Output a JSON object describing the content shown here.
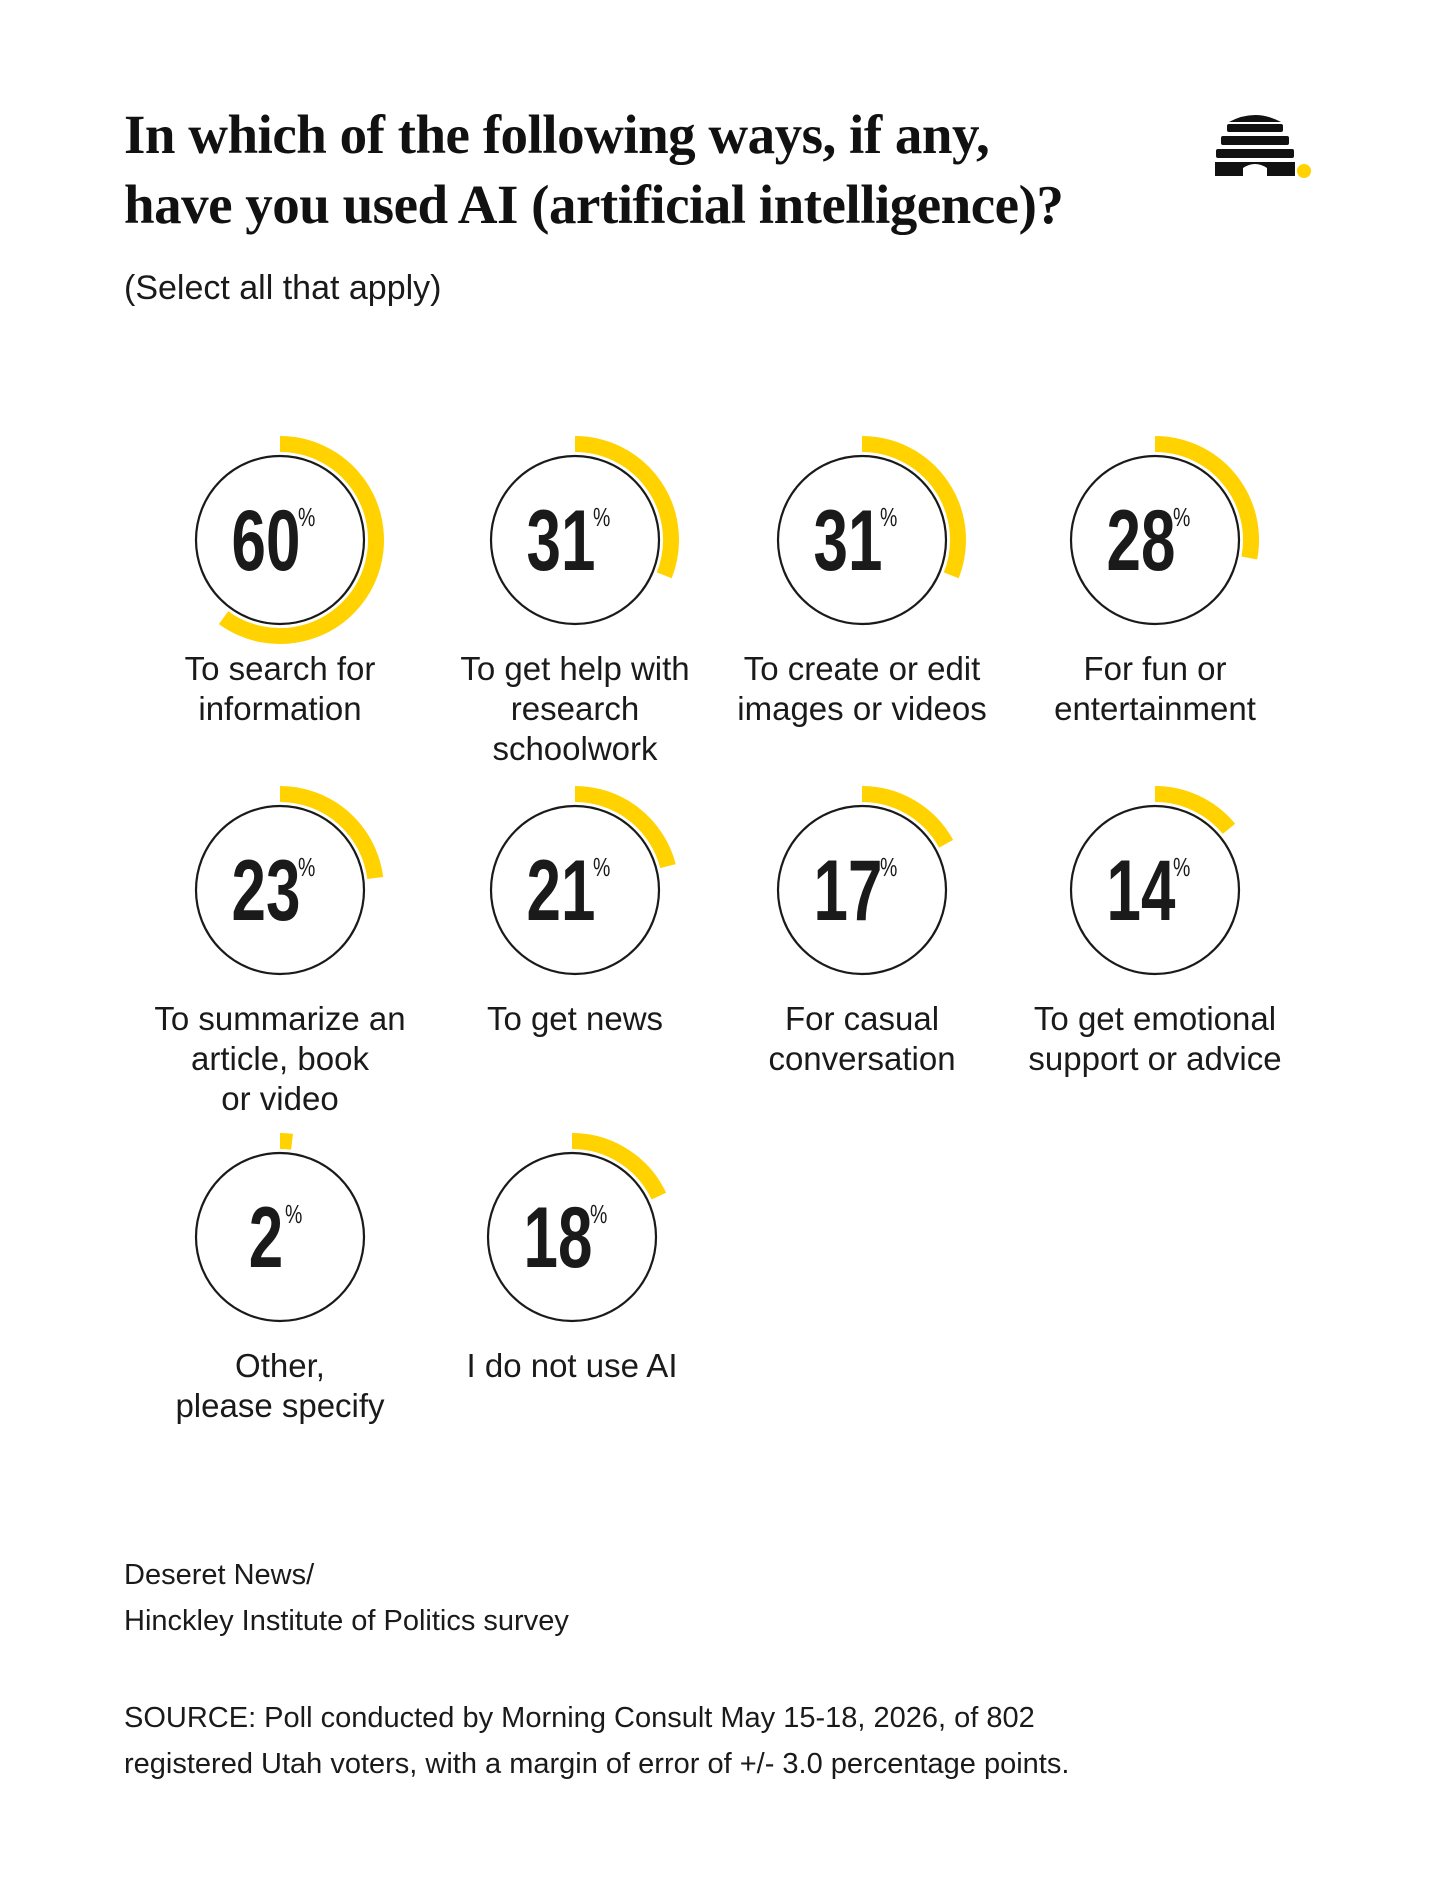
{
  "title": "In which of the following ways, if any,\nhave you used AI (artificial intelligence)?",
  "subtitle": "(Select all that apply)",
  "logo_icon": "beehive-icon",
  "colors": {
    "accent": "#ffd200",
    "ring": "#1a1a1a",
    "text": "#1a1a1a"
  },
  "chart_data": {
    "type": "radial-progress",
    "unit": "%",
    "max": 100,
    "items": [
      {
        "label": "To search for\ninformation",
        "value": 60
      },
      {
        "label": "To get help with\nresearch\nschoolwork",
        "value": 31
      },
      {
        "label": "To create or edit\nimages or videos",
        "value": 31
      },
      {
        "label": "For fun or\nentertainment",
        "value": 28
      },
      {
        "label": "To summarize an\narticle, book\nor video",
        "value": 23
      },
      {
        "label": "To get news",
        "value": 21
      },
      {
        "label": "For casual\nconversation",
        "value": 17
      },
      {
        "label": "To get emotional\nsupport or advice",
        "value": 14
      },
      {
        "label": "Other,\nplease specify",
        "value": 2
      },
      {
        "label": "I do not use AI",
        "value": 18
      }
    ]
  },
  "credit": {
    "line1": "Deseret News/",
    "line2": "Hinckley Institute of Politics survey"
  },
  "source": "SOURCE: Poll conducted by Morning Consult May 15-18, 2026, of 802\nregistered Utah voters, with a margin of error of +/- 3.0 percentage points."
}
